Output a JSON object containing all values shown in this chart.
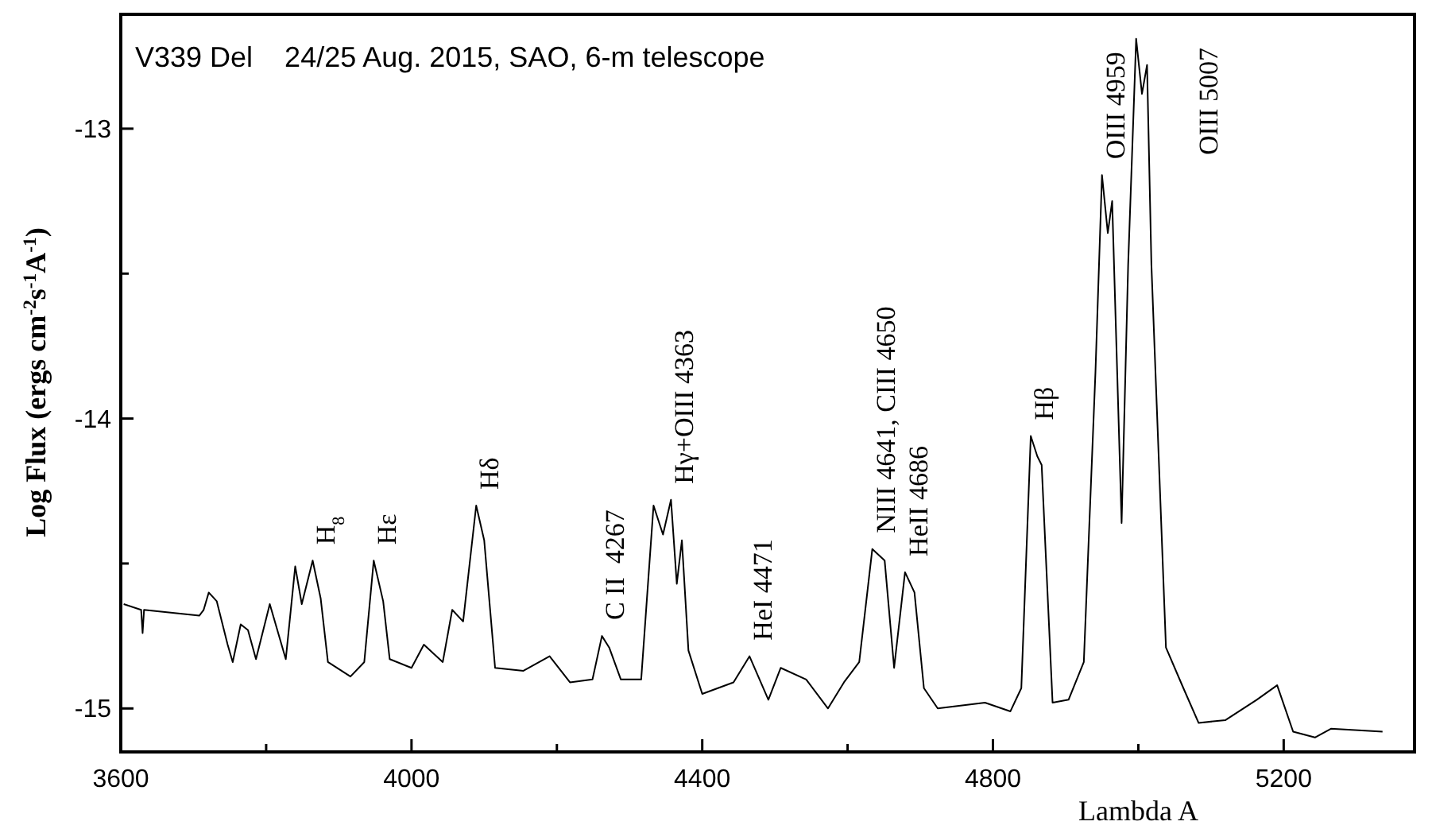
{
  "chart_data": {
    "type": "line",
    "title": "V339 Del    24/25 Aug. 2015, SAO, 6-m telescope",
    "xlabel": "Lambda A",
    "ylabel": "Log Flux (ergs cm$^{-2}$s$^{-1}$A$^{-1}$)",
    "xlim": [
      3600,
      5380
    ],
    "ylim": [
      -15.15,
      -12.6
    ],
    "xticks": [
      3600,
      {
        "value": 3800,
        "label": null
      },
      4000,
      {
        "value": 4200,
        "label": null
      },
      4400,
      {
        "value": 4600,
        "label": null
      },
      4800,
      {
        "value": 5000,
        "label": null
      },
      5200
    ],
    "yticks": [
      -15,
      {
        "value": -14.5,
        "label": null
      },
      -14,
      {
        "value": -13.5,
        "label": null
      },
      -13
    ],
    "grid": false,
    "marker": "none",
    "line_style": "solid",
    "series": [
      {
        "color": "#000000",
        "x": [
          3604,
          3628,
          3630,
          3632,
          3708,
          3714,
          3721,
          3732,
          3747,
          3754,
          3765,
          3775,
          3786,
          3805,
          3827,
          3840,
          3849,
          3864,
          3875,
          3885,
          3916,
          3935,
          3948,
          3961,
          3970,
          4000,
          4017,
          4043,
          4056,
          4071,
          4089,
          4100,
          4115,
          4154,
          4190,
          4218,
          4249,
          4262,
          4272,
          4288,
          4316,
          4333,
          4346,
          4357,
          4365,
          4372,
          4381,
          4400,
          4443,
          4465,
          4491,
          4508,
          4543,
          4573,
          4595,
          4616,
          4634,
          4651,
          4664,
          4679,
          4692,
          4705,
          4724,
          4789,
          4824,
          4839,
          4852,
          4861,
          4867,
          4882,
          4904,
          4925,
          4941,
          4950,
          4958,
          4964,
          4977,
          4986,
          4997,
          5005,
          5012,
          5018,
          5038,
          5062,
          5083,
          5120,
          5163,
          5191,
          5213,
          5243,
          5265,
          5336
        ],
        "values": [
          -14.64,
          -14.66,
          -14.74,
          -14.66,
          -14.68,
          -14.66,
          -14.6,
          -14.63,
          -14.78,
          -14.84,
          -14.71,
          -14.73,
          -14.83,
          -14.64,
          -14.83,
          -14.51,
          -14.64,
          -14.49,
          -14.62,
          -14.84,
          -14.89,
          -14.84,
          -14.49,
          -14.63,
          -14.83,
          -14.86,
          -14.78,
          -14.84,
          -14.66,
          -14.7,
          -14.3,
          -14.42,
          -14.86,
          -14.87,
          -14.82,
          -14.91,
          -14.9,
          -14.75,
          -14.79,
          -14.9,
          -14.9,
          -14.3,
          -14.4,
          -14.28,
          -14.57,
          -14.42,
          -14.8,
          -14.95,
          -14.91,
          -14.82,
          -14.97,
          -14.86,
          -14.9,
          -15.0,
          -14.91,
          -14.84,
          -14.45,
          -14.49,
          -14.86,
          -14.53,
          -14.6,
          -14.93,
          -15.0,
          -14.98,
          -15.01,
          -14.93,
          -14.06,
          -14.13,
          -14.16,
          -14.98,
          -14.97,
          -14.84,
          -13.84,
          -13.16,
          -13.36,
          -13.25,
          -14.36,
          -13.47,
          -12.69,
          -12.88,
          -12.78,
          -13.47,
          -14.79,
          -14.93,
          -15.05,
          -15.04,
          -14.97,
          -14.92,
          -15.08,
          -15.1,
          -15.07,
          -15.08
        ]
      }
    ],
    "annotations": [
      {
        "text": "H$_{8}$",
        "x": 3864,
        "y": -14.49
      },
      {
        "text": "Hε",
        "x": 3948,
        "y": -14.49
      },
      {
        "text": "Hδ",
        "x": 4089,
        "y": -14.3
      },
      {
        "text": "C II  4267",
        "x": 4262,
        "y": -14.75
      },
      {
        "text": "Hγ+OIII 4363",
        "x": 4357,
        "y": -14.28
      },
      {
        "text": "HeI 4471",
        "x": 4465,
        "y": -14.82
      },
      {
        "text": "NIII 4641, CIII 4650",
        "x": 4634,
        "y": -14.45
      },
      {
        "text": "HeII 4686",
        "x": 4679,
        "y": -14.53
      },
      {
        "text": "Hβ",
        "x": 4852,
        "y": -14.06
      },
      {
        "text": "OIII 4959",
        "x": 4950,
        "y": -13.16
      },
      "OIII 5007"
    ]
  }
}
